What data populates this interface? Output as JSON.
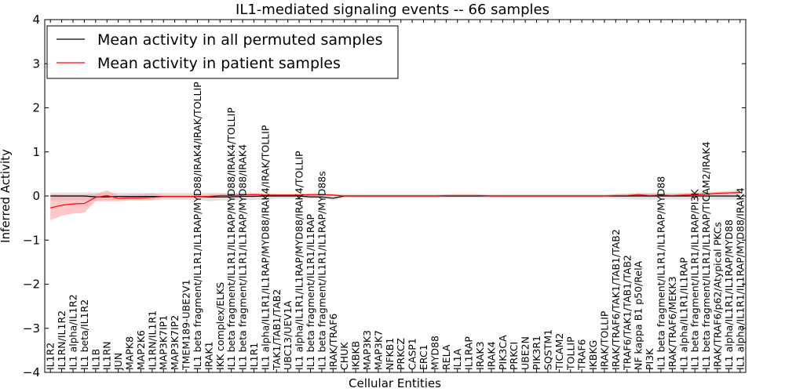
{
  "chart_data": {
    "type": "line",
    "title": "IL1-mediated signaling events -- 66 samples",
    "xlabel": "Cellular Entities",
    "ylabel": "Inferred Activity",
    "ylim": [
      -4,
      4
    ],
    "yticks": [
      -4,
      -3,
      -2,
      -1,
      0,
      1,
      2,
      3,
      4
    ],
    "ytick_labels": [
      "−4",
      "−3",
      "−2",
      "−1",
      "0",
      "1",
      "2",
      "3",
      "4"
    ],
    "legend_position": "top-left",
    "colors": {
      "permuted": "#000000",
      "patient": "#ff0000",
      "permuted_band": "#c8c8c8",
      "patient_band": "#ff9a9a"
    },
    "categories": [
      "IL1R2",
      "IL1RN/IL1R2",
      "IL1 alpha/IL1R2",
      "IL1 beta/IL1R2",
      "IL1B",
      "IL1RN",
      "JUN",
      "MAPK8",
      "MAP2K6",
      "IL1RN/IL1R1",
      "MAP3K7IP1",
      "MAP3K7IP2",
      "TMEM189-UBE2V1",
      "IL1 beta fragment/IL1R1/IL1RAP/MYD88/IRAK4/IRAK/TOLLIP",
      "IRAK1",
      "IKK complex/ELKS",
      "IL1 beta fragment/IL1R1/IL1RAP/MYD88/IRAK4/TOLLIP",
      "IL1 beta fragment/IL1R1/IL1RAP/MYD88/IRAK4",
      "IL1R1",
      "IL1 alpha/IL1R1/IL1RAP/MYD88/IRAK4/IRAK/TOLLIP",
      "TAK1/TAB1/TAB2",
      "UBC13/UEV1A",
      "IL1 alpha/IL1R1/IL1RAP/MYD88/IRAK4/TOLLIP",
      "IL1 beta fragment/IL1R1/IL1RAP",
      "IL1 beta fragment/IL1R1/IL1RAP/MYD88s",
      "IRAK/TRAF6",
      "CHUK",
      "IKBKB",
      "MAP3K3",
      "MAP3K7",
      "NFKB1",
      "PRKCZ",
      "CASP1",
      "ERC1",
      "MYD88",
      "RELA",
      "IL1A",
      "IL1RAP",
      "IRAK3",
      "IRAK4",
      "PIK3CA",
      "PRKCI",
      "UBE2N",
      "PIK3R1",
      "SQSTM1",
      "TICAM2",
      "TOLLIP",
      "TRAF6",
      "IKBKG",
      "IRAK/TOLLIP",
      "IRAK/TRAF6/TAK1/TAB1/TAB2",
      "TRAF6/TAK1/TAB1/TAB2",
      "NF kappa B1 p50/RelA",
      "PI3K",
      "IL1 beta fragment/IL1R1/IL1RAP/MYD88",
      "IRAK/TRAF6/MEKK3",
      "IL1 alpha/IL1R1/IL1RAP",
      "IL1 beta fragment/IL1R1/IL1RAP/PI3K",
      "IL1 beta fragment/IL1R1/IL1RAP/TICAM2/IRAK4",
      "IRAK/TRAF6/p62/Atypical PKCs",
      "IL1 alpha/IL1R1/IL1RAP/MYD88",
      "IL1 alpha/IL1R1/IL1RAP/MYD88/IRAK4"
    ],
    "series": [
      {
        "name": "Mean activity in all permuted samples",
        "values": [
          0.0,
          0.0,
          0.0,
          0.0,
          -0.02,
          -0.02,
          -0.01,
          -0.01,
          -0.01,
          -0.01,
          -0.01,
          -0.01,
          -0.01,
          -0.01,
          -0.02,
          -0.02,
          -0.02,
          -0.01,
          -0.01,
          0.0,
          0.0,
          0.0,
          0.0,
          -0.02,
          -0.02,
          -0.05,
          0.0,
          0.0,
          0.0,
          0.0,
          0.0,
          0.0,
          0.0,
          0.0,
          0.0,
          0.0,
          0.0,
          0.0,
          0.0,
          0.0,
          0.0,
          0.0,
          0.0,
          0.0,
          0.0,
          0.0,
          0.0,
          0.0,
          0.0,
          0.0,
          0.0,
          0.0,
          0.0,
          0.0,
          0.0,
          0.0,
          0.0,
          0.0,
          0.0,
          0.0,
          0.0,
          0.0
        ],
        "lower": [
          -0.1,
          -0.1,
          -0.1,
          -0.1,
          -0.1,
          -0.09,
          -0.09,
          -0.09,
          -0.09,
          -0.09,
          -0.09,
          -0.09,
          -0.09,
          -0.09,
          -0.12,
          -0.1,
          -0.1,
          -0.09,
          -0.09,
          -0.09,
          -0.06,
          -0.06,
          -0.06,
          -0.06,
          -0.06,
          -0.1,
          -0.04,
          -0.04,
          -0.04,
          -0.04,
          -0.04,
          -0.04,
          -0.04,
          -0.04,
          -0.04,
          -0.04,
          -0.04,
          -0.04,
          -0.04,
          -0.04,
          -0.04,
          -0.04,
          -0.04,
          -0.04,
          -0.04,
          -0.04,
          -0.04,
          -0.04,
          -0.04,
          -0.04,
          -0.06,
          -0.07,
          -0.08,
          -0.08,
          -0.08,
          -0.08,
          -0.08,
          -0.08,
          -0.08,
          -0.08,
          -0.08,
          -0.08
        ],
        "upper": [
          0.08,
          0.08,
          0.08,
          0.08,
          0.08,
          0.07,
          0.07,
          0.07,
          0.07,
          0.07,
          0.07,
          0.07,
          0.07,
          0.07,
          0.07,
          0.07,
          0.07,
          0.07,
          0.06,
          0.06,
          0.05,
          0.05,
          0.05,
          0.05,
          0.05,
          0.04,
          0.04,
          0.04,
          0.04,
          0.04,
          0.04,
          0.04,
          0.04,
          0.04,
          0.04,
          0.04,
          0.04,
          0.04,
          0.04,
          0.04,
          0.04,
          0.04,
          0.04,
          0.04,
          0.04,
          0.04,
          0.04,
          0.04,
          0.04,
          0.04,
          0.05,
          0.06,
          0.07,
          0.07,
          0.07,
          0.07,
          0.07,
          0.07,
          0.07,
          0.07,
          0.07,
          0.07
        ]
      },
      {
        "name": "Mean activity in patient samples",
        "values": [
          -0.27,
          -0.21,
          -0.18,
          -0.17,
          -0.03,
          0.01,
          -0.05,
          -0.04,
          -0.04,
          -0.03,
          -0.01,
          -0.01,
          -0.01,
          -0.01,
          -0.01,
          0.01,
          0.01,
          0.02,
          0.03,
          0.02,
          0.02,
          0.02,
          0.02,
          0.03,
          0.03,
          0.02,
          0.0,
          0.0,
          0.0,
          0.0,
          0.0,
          0.0,
          0.0,
          0.0,
          0.0,
          0.01,
          0.01,
          0.01,
          0.01,
          0.0,
          0.0,
          0.0,
          0.0,
          0.0,
          0.0,
          0.0,
          0.0,
          0.0,
          0.0,
          0.0,
          0.01,
          0.01,
          0.03,
          0.01,
          0.02,
          0.01,
          0.02,
          0.03,
          0.04,
          0.06,
          0.07,
          0.08
        ],
        "lower": [
          -0.55,
          -0.45,
          -0.4,
          -0.38,
          -0.12,
          -0.12,
          -0.12,
          -0.1,
          -0.1,
          -0.1,
          -0.04,
          -0.04,
          -0.04,
          -0.04,
          -0.04,
          -0.03,
          -0.03,
          -0.02,
          -0.01,
          -0.01,
          0.0,
          0.0,
          0.0,
          0.0,
          0.0,
          0.0,
          -0.01,
          -0.01,
          -0.01,
          -0.01,
          -0.01,
          -0.01,
          -0.01,
          -0.01,
          -0.01,
          -0.01,
          -0.01,
          -0.01,
          -0.01,
          -0.01,
          -0.01,
          -0.01,
          -0.01,
          -0.01,
          -0.01,
          -0.01,
          -0.01,
          -0.01,
          -0.01,
          -0.01,
          -0.02,
          -0.02,
          0.0,
          -0.03,
          -0.01,
          -0.02,
          0.0,
          0.01,
          0.02,
          0.03,
          0.04,
          0.04
        ],
        "upper": [
          0.04,
          0.03,
          0.03,
          0.03,
          0.05,
          0.13,
          0.02,
          0.03,
          0.04,
          0.06,
          0.02,
          0.02,
          0.02,
          0.02,
          0.03,
          0.05,
          0.05,
          0.06,
          0.07,
          0.06,
          0.05,
          0.05,
          0.05,
          0.06,
          0.06,
          0.05,
          0.02,
          0.02,
          0.02,
          0.02,
          0.02,
          0.02,
          0.02,
          0.02,
          0.02,
          0.03,
          0.03,
          0.03,
          0.03,
          0.02,
          0.02,
          0.02,
          0.02,
          0.02,
          0.02,
          0.02,
          0.02,
          0.02,
          0.02,
          0.02,
          0.04,
          0.04,
          0.06,
          0.05,
          0.05,
          0.04,
          0.06,
          0.08,
          0.09,
          0.1,
          0.11,
          0.12
        ]
      }
    ]
  }
}
